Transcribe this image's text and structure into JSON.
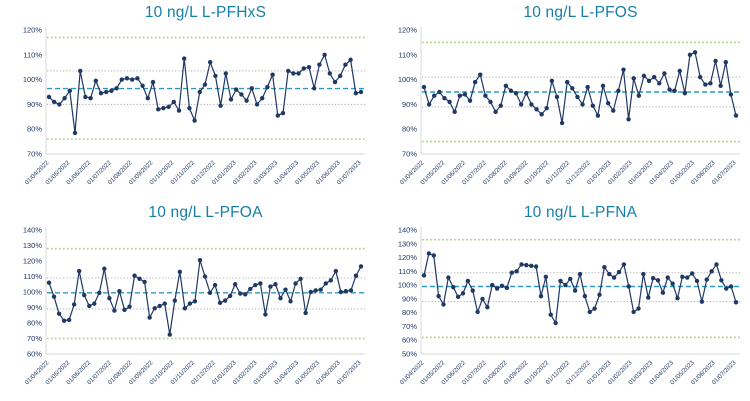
{
  "colors": {
    "title_text": "#157FA8",
    "series": "#1F3864",
    "mean_line": "#2E9AC4",
    "warning_line": "#ADADAD",
    "action_line": "#A8CE7C",
    "axis_line": "#D9D9D9",
    "ytick_text": "#1F3864",
    "date_text": "#1F3864"
  },
  "chart_data": {
    "type": "line",
    "legend": "none",
    "grid": "control-limit lines only (dotted warning, dotted action, dashed mean)",
    "categories": [
      "01/04/2022",
      "01/05/2022",
      "01/06/2022",
      "01/07/2022",
      "01/08/2022",
      "01/09/2022",
      "01/10/2022",
      "01/11/2022",
      "01/12/2022",
      "01/01/2023",
      "01/02/2023",
      "01/03/2023",
      "01/04/2023",
      "01/05/2023",
      "01/06/2023",
      "01/07/2023"
    ],
    "charts": [
      {
        "title": "10 ng/L L-PFHxS",
        "ylim": [
          70,
          120
        ],
        "yticks": [
          "120%",
          "110%",
          "100%",
          "90%",
          "80%",
          "70%"
        ],
        "mean": 96.4,
        "warn_upper": 103.5,
        "warn_lower": 90,
        "action_upper": 117,
        "action_lower": 76,
        "values": [
          93,
          91,
          90,
          92.5,
          95.5,
          78.5,
          103.5,
          93,
          92.5,
          99.5,
          94.5,
          95,
          95.5,
          96.5,
          100,
          100.5,
          100,
          100.5,
          97.5,
          92.5,
          99,
          88,
          88.5,
          89,
          91,
          87.5,
          108.5,
          88.5,
          83.5,
          95,
          98,
          107,
          101.5,
          89.5,
          102.5,
          92,
          96,
          94,
          91.5,
          96.5,
          90,
          92.5,
          97,
          102,
          85.5,
          86.5,
          103.5,
          102.5,
          102.5,
          104.5,
          105,
          96.5,
          106,
          110,
          102.5,
          99,
          101.5,
          106,
          108,
          94.5,
          95
        ]
      },
      {
        "title": "10 ng/L L-PFOS",
        "ylim": [
          70,
          120
        ],
        "yticks": [
          "120%",
          "110%",
          "100%",
          "90%",
          "80%",
          "70%"
        ],
        "mean": 95,
        "warn_upper": 101,
        "warn_lower": 89,
        "action_upper": 115,
        "action_lower": 75,
        "values": [
          97,
          90,
          93.5,
          95,
          92.5,
          91,
          87,
          93.5,
          94,
          91.5,
          99,
          102,
          93.5,
          91,
          87,
          89.5,
          97.5,
          95.5,
          94.5,
          90,
          94.5,
          90,
          88,
          86,
          88.5,
          99.5,
          93,
          82.5,
          99,
          96.5,
          93,
          90,
          97,
          89.5,
          85.5,
          97.5,
          90.5,
          87.5,
          95.5,
          104,
          84,
          100.5,
          93.5,
          101.5,
          99.5,
          101,
          98.5,
          102.5,
          96,
          95.5,
          103.5,
          94.5,
          110,
          111,
          101,
          98,
          98.5,
          107.5,
          97.5,
          107,
          94,
          85.5
        ]
      },
      {
        "title": "10 ng/L L-PFOA",
        "ylim": [
          60,
          140
        ],
        "yticks": [
          "140%",
          "130%",
          "120%",
          "110%",
          "100%",
          "90%",
          "80%",
          "70%",
          "60%"
        ],
        "mean": 99.5,
        "warn_upper": 109,
        "warn_lower": 89,
        "action_upper": 128,
        "action_lower": 70,
        "values": [
          106,
          97,
          86,
          81.5,
          82,
          92,
          113.5,
          98,
          91,
          92.5,
          99.5,
          115,
          96,
          88,
          100.5,
          88.5,
          90.5,
          110.5,
          108.5,
          106.5,
          83.5,
          89.5,
          91,
          92.5,
          72.5,
          94.5,
          113,
          89.5,
          92.5,
          94,
          120.5,
          110,
          99.5,
          104.5,
          93,
          94.5,
          97.5,
          105,
          99,
          98.5,
          102,
          104.5,
          105.5,
          85.5,
          103.5,
          105,
          96,
          101.5,
          94,
          105.5,
          108.5,
          86.5,
          100,
          101,
          101.5,
          105.5,
          107.5,
          113.5,
          100,
          100.5,
          101,
          110.5,
          116.5
        ]
      },
      {
        "title": "10 ng/L L-PFNA",
        "ylim": [
          50,
          140
        ],
        "yticks": [
          "140%",
          "130%",
          "120%",
          "110%",
          "100%",
          "90%",
          "80%",
          "70%",
          "60%",
          "50%"
        ],
        "mean": 99,
        "warn_upper": 109,
        "warn_lower": 88,
        "action_upper": 133,
        "action_lower": 62,
        "values": [
          107,
          123,
          121.5,
          92,
          86,
          105.5,
          98.5,
          91.5,
          94,
          103,
          96,
          80.5,
          90,
          84,
          100,
          97.5,
          99.5,
          98,
          109,
          110,
          115,
          114.5,
          114,
          113.5,
          92,
          106,
          78.5,
          72.5,
          103,
          100,
          104.5,
          96,
          108,
          92,
          80.5,
          83,
          93,
          113,
          108,
          105.5,
          109.5,
          115,
          99,
          80.5,
          83,
          108,
          91,
          105,
          103.5,
          94.5,
          105.5,
          101,
          90.5,
          106,
          105.5,
          108.5,
          103,
          88,
          104,
          110,
          115,
          103.5,
          97.5,
          99,
          87.5
        ]
      }
    ]
  }
}
